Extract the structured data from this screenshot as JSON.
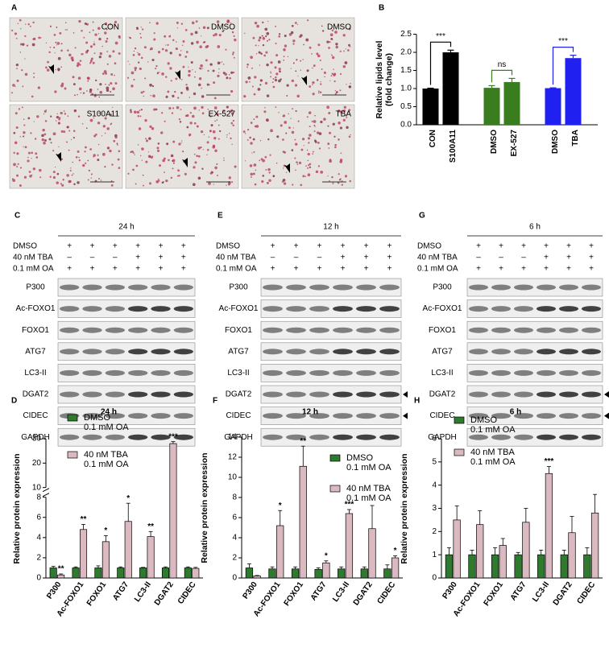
{
  "panel_a": {
    "label": "A",
    "images": [
      {
        "label": "CON",
        "color": "#000000"
      },
      {
        "label": "DMSO",
        "color": "#3a7d1e"
      },
      {
        "label": "DMSO",
        "color": "#2020f0"
      },
      {
        "label": "S100A11",
        "color": "#000000"
      },
      {
        "label": "EX-527",
        "color": "#3a7d1e"
      },
      {
        "label": "TBA",
        "color": "#2020f0"
      }
    ]
  },
  "blots": [
    {
      "label": "C",
      "time": "24 h",
      "conditions": [
        {
          "name": "DMSO",
          "signs": [
            "+",
            "+",
            "+",
            "+",
            "+",
            "+"
          ]
        },
        {
          "name": "40 nM TBA",
          "signs": [
            "–",
            "–",
            "–",
            "+",
            "+",
            "+"
          ]
        },
        {
          "name": "0.1 mM OA",
          "signs": [
            "+",
            "+",
            "+",
            "+",
            "+",
            "+"
          ]
        }
      ],
      "proteins": [
        "P300",
        "Ac-FOXO1",
        "FOXO1",
        "ATG7",
        "LC3-II",
        "DGAT2",
        "CIDEC",
        "GAPDH"
      ]
    },
    {
      "label": "E",
      "time": "12 h",
      "conditions": [
        {
          "name": "DMSO",
          "signs": [
            "+",
            "+",
            "+",
            "+",
            "+",
            "+"
          ]
        },
        {
          "name": "40 nM TBA",
          "signs": [
            "–",
            "–",
            "–",
            "+",
            "+",
            "+"
          ]
        },
        {
          "name": "0.1 mM OA",
          "signs": [
            "+",
            "+",
            "+",
            "+",
            "+",
            "+"
          ]
        }
      ],
      "proteins": [
        "P300",
        "Ac-FOXO1",
        "FOXO1",
        "ATG7",
        "LC3-II",
        "DGAT2",
        "CIDEC",
        "GAPDH"
      ]
    },
    {
      "label": "G",
      "time": "6 h",
      "conditions": [
        {
          "name": "DMSO",
          "signs": [
            "+",
            "+",
            "+",
            "+",
            "+",
            "+"
          ]
        },
        {
          "name": "40 nM TBA",
          "signs": [
            "–",
            "–",
            "–",
            "+",
            "+",
            "+"
          ]
        },
        {
          "name": "0.1 mM OA",
          "signs": [
            "+",
            "+",
            "+",
            "+",
            "+",
            "+"
          ]
        }
      ],
      "proteins": [
        "P300",
        "Ac-FOXO1",
        "FOXO1",
        "ATG7",
        "LC3-II",
        "DGAT2",
        "CIDEC",
        "GAPDH"
      ]
    }
  ],
  "chart_data": [
    {
      "type": "bar",
      "panel": "B",
      "ylabel": "Relative lipids level\n(fold change)",
      "categories": [
        "CON",
        "S100A11",
        "DMSO",
        "EX-527",
        "DMSO",
        "TBA"
      ],
      "values": [
        1.0,
        2.0,
        1.02,
        1.18,
        1.01,
        1.84
      ],
      "errors": [
        0.01,
        0.06,
        0.06,
        0.1,
        0.01,
        0.08
      ],
      "colors": [
        "#000000",
        "#000000",
        "#3a7d1e",
        "#3a7d1e",
        "#2020f0",
        "#2020f0"
      ],
      "annotations": [
        "***",
        "ns",
        "***"
      ],
      "ylim": [
        0,
        2.5
      ],
      "yticks": [
        {
          "value": 0,
          "label": "0.0"
        },
        {
          "value": 0.5,
          "label": "0.5"
        },
        {
          "value": 1,
          "label": "1.0"
        },
        {
          "value": 1.5,
          "label": "1.5"
        },
        {
          "value": 2,
          "label": "2.0"
        },
        {
          "value": 2.5,
          "label": "2.5"
        }
      ]
    },
    {
      "type": "grouped_bar",
      "panel": "D",
      "title": "24 h",
      "ylabel": "Relative protein expression",
      "categories": [
        "P300",
        "Ac-FOXO1",
        "FOXO1",
        "ATG7",
        "LC3-II",
        "DGAT2",
        "CIDEC"
      ],
      "series": [
        {
          "name": "DMSO\n0.1 mM OA",
          "color": "#2f7a2f",
          "values": [
            1,
            1,
            1,
            1,
            1,
            1,
            1
          ],
          "errors": [
            0.15,
            0.1,
            0.2,
            0.1,
            0.05,
            0.1,
            0.1
          ]
        },
        {
          "name": "40 nM TBA\n0.1 mM OA",
          "color": "#dbb9c0",
          "values": [
            0.3,
            4.8,
            3.6,
            5.6,
            4.1,
            28,
            0.95
          ],
          "errors": [
            0.1,
            0.5,
            0.6,
            1.8,
            0.5,
            0.8,
            0.1
          ],
          "annotations": [
            "**",
            "**",
            "*",
            "*",
            "**",
            "***",
            null
          ]
        }
      ],
      "ylim": [
        0,
        30
      ],
      "ybreak": [
        8,
        10
      ],
      "yticks": [
        0,
        2,
        4,
        6,
        8,
        10,
        20,
        30
      ]
    },
    {
      "type": "grouped_bar",
      "panel": "F",
      "title": "12 h",
      "ylabel": "Relative protein expression",
      "categories": [
        "P300",
        "Ac-FOXO1",
        "FOXO1",
        "ATG7",
        "LC3-II",
        "DGAT2",
        "CIDEC"
      ],
      "series": [
        {
          "name": "DMSO\n0.1 mM OA",
          "color": "#2f7a2f",
          "values": [
            1.0,
            0.9,
            0.9,
            0.85,
            0.9,
            0.9,
            0.9
          ],
          "errors": [
            0.4,
            0.2,
            0.2,
            0.15,
            0.2,
            0.2,
            0.4
          ]
        },
        {
          "name": "40 nM TBA\n0.1 mM OA",
          "color": "#dbb9c0",
          "values": [
            0.2,
            5.2,
            11.1,
            1.5,
            6.4,
            4.9,
            2.0
          ],
          "errors": [
            0.05,
            1.5,
            2.0,
            0.2,
            0.4,
            2.3,
            0.2
          ],
          "annotations": [
            null,
            "*",
            "**",
            "*",
            "***",
            null,
            "*"
          ]
        }
      ],
      "ylim": [
        0,
        14
      ],
      "yticks": [
        0,
        2,
        4,
        6,
        8,
        10,
        12,
        14
      ]
    },
    {
      "type": "grouped_bar",
      "panel": "H",
      "title": "6 h",
      "ylabel": "Relative protein expression",
      "categories": [
        "P300",
        "Ac-FOXO1",
        "FOXO1",
        "ATG7",
        "LC3-II",
        "DGAT2",
        "CIDEC"
      ],
      "series": [
        {
          "name": "DMSO\n0.1 mM OA",
          "color": "#2f7a2f",
          "values": [
            1.0,
            1.0,
            1.0,
            1.0,
            1.0,
            1.0,
            1.0
          ],
          "errors": [
            0.3,
            0.2,
            0.3,
            0.1,
            0.2,
            0.2,
            0.3
          ]
        },
        {
          "name": "40 nM TBA\n0.1 mM OA",
          "color": "#dbb9c0",
          "values": [
            2.5,
            2.3,
            1.4,
            2.4,
            4.5,
            1.95,
            2.8
          ],
          "errors": [
            0.6,
            0.6,
            0.3,
            0.6,
            0.3,
            0.7,
            0.8
          ],
          "annotations": [
            null,
            null,
            null,
            null,
            "***",
            null,
            null
          ]
        }
      ],
      "ylim": [
        0,
        6
      ],
      "yticks": [
        0,
        1,
        2,
        3,
        4,
        5,
        6
      ]
    }
  ]
}
